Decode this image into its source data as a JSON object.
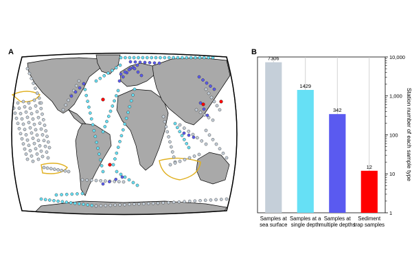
{
  "panels": {
    "map_label": "A",
    "chart_label": "B"
  },
  "colors": {
    "ocean": "#ffffff",
    "land": "#a9a9a9",
    "coast": "#000000",
    "surface": "#c5cfd9",
    "single": "#66e0f5",
    "multiple": "#5a5af0",
    "trap": "#ff0000",
    "region_outline": "#e0b020"
  },
  "chart_data": {
    "type": "bar",
    "scale": "log",
    "categories": [
      [
        "Samples at",
        "sea surface"
      ],
      [
        "Samples at a",
        "single depth"
      ],
      [
        "Samples at",
        "multiple depths"
      ],
      [
        "Sediment",
        "trap samples"
      ]
    ],
    "values": [
      7306,
      1429,
      342,
      12
    ],
    "data_labels": [
      "7306",
      "1429",
      "342",
      "12"
    ],
    "bar_colors": [
      "#c5cfd9",
      "#66e0f5",
      "#5a5af0",
      "#ff0000"
    ],
    "ylabel": "Station number of each sample type",
    "ylim": [
      1,
      10000
    ],
    "yticks": [
      {
        "value": 1,
        "label": "1"
      },
      {
        "value": 10,
        "label": "10"
      },
      {
        "value": 100,
        "label": "100"
      },
      {
        "value": 1000,
        "label": "1,000"
      },
      {
        "value": 10000,
        "label": "10,000"
      }
    ],
    "grid": "vertical"
  }
}
